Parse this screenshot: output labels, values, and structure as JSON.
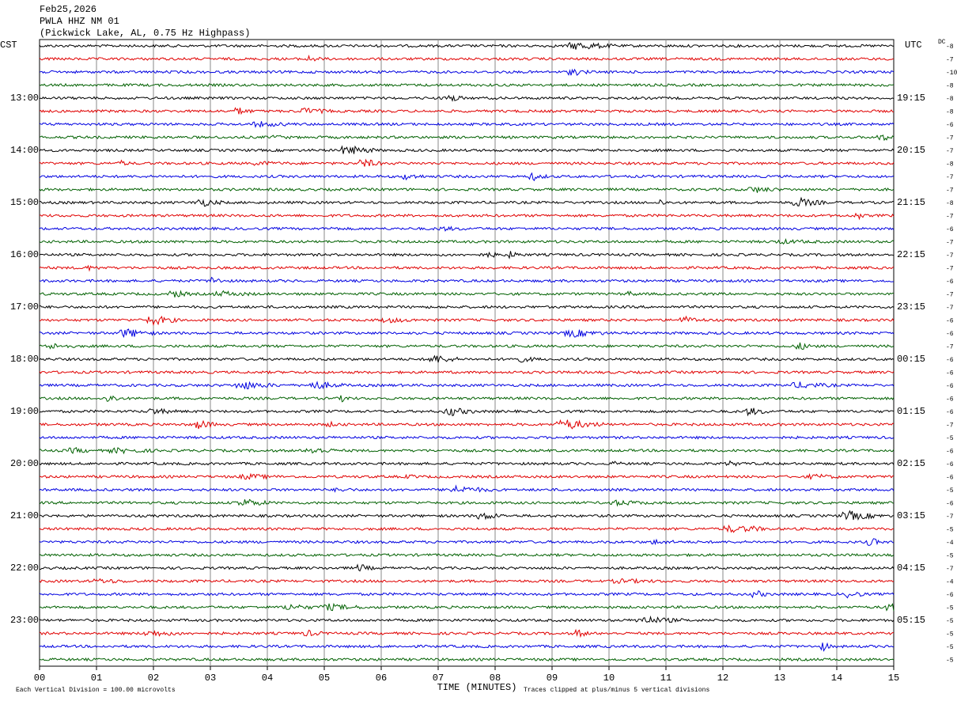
{
  "header": {
    "date": "Feb25,2026",
    "station": "PWLA HHZ NM 01",
    "location": "(Pickwick Lake, AL, 0.75 Hz Highpass)"
  },
  "left_zone": "CST",
  "right_zone": "UTC",
  "dc_label": "DC",
  "left_hours": [
    "13:00",
    "14:00",
    "15:00",
    "16:00",
    "17:00",
    "18:00",
    "19:00",
    "20:00",
    "21:00",
    "22:00",
    "23:00"
  ],
  "right_hours": [
    "19:15",
    "20:15",
    "21:15",
    "22:15",
    "23:15",
    "00:15",
    "01:15",
    "02:15",
    "03:15",
    "04:15",
    "05:15"
  ],
  "dc_offsets": [
    -8,
    -7,
    -10,
    -8,
    -8,
    -8,
    -6,
    -7,
    -7,
    -8,
    -7,
    -7,
    -8,
    -7,
    -6,
    -7,
    -7,
    -7,
    -6,
    -7,
    -7,
    -6,
    -6,
    -7,
    -6,
    -6,
    -6,
    -6,
    -6,
    -7,
    -5,
    -6,
    -6,
    -6,
    -5,
    -6,
    -7,
    -5,
    -4,
    -5,
    -7,
    -4,
    -6,
    -5,
    -5,
    -5,
    -5,
    -5
  ],
  "trace_colors": [
    "#000000",
    "#e00000",
    "#0000e0",
    "#006000"
  ],
  "x_ticks": [
    "00",
    "01",
    "02",
    "03",
    "04",
    "05",
    "06",
    "07",
    "08",
    "09",
    "10",
    "11",
    "12",
    "13",
    "14",
    "15"
  ],
  "footer": {
    "scale": "Each Vertical Division =  100.00 microvolts",
    "x_label": "TIME (MINUTES)",
    "clip_note": "Traces clipped at plus/minus 5 vertical divisions"
  }
}
